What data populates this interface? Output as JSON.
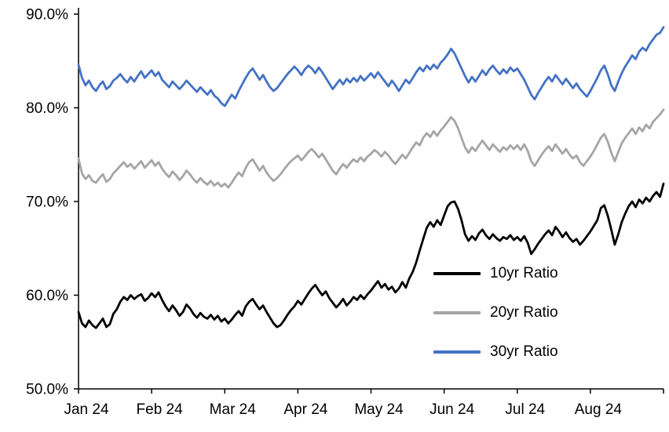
{
  "chart_data": {
    "type": "line",
    "title": "",
    "xlabel": "",
    "ylabel": "",
    "ylim": [
      50,
      90
    ],
    "grid": false,
    "legend_position": "inside-lower-right",
    "yticks": [
      50,
      60,
      70,
      80,
      90
    ],
    "ytick_labels": [
      "50.0%",
      "60.0%",
      "70.0%",
      "80.0%",
      "90.0%"
    ],
    "xtick_positions": [
      0,
      21,
      42,
      63,
      84,
      105,
      126,
      147
    ],
    "xtick_labels": [
      "Jan 24",
      "Feb 24",
      "Mar 24",
      "Apr 24",
      "May 24",
      "Jun 24",
      "Jul 24",
      "Aug 24"
    ],
    "axis_color": "#000000",
    "series": [
      {
        "name": "10yr Ratio",
        "color": "#000000",
        "values": [
          58.2,
          57.0,
          56.6,
          57.3,
          56.8,
          56.5,
          57.0,
          57.5,
          56.6,
          56.9,
          58.0,
          58.5,
          59.3,
          59.8,
          59.5,
          60.0,
          59.6,
          59.9,
          60.1,
          59.4,
          59.7,
          60.2,
          59.8,
          60.3,
          59.5,
          58.8,
          58.3,
          58.9,
          58.4,
          57.8,
          58.2,
          59.0,
          58.6,
          58.0,
          57.6,
          58.1,
          57.7,
          57.5,
          57.9,
          57.4,
          57.8,
          57.2,
          57.5,
          57.0,
          57.4,
          57.9,
          58.3,
          57.8,
          58.8,
          59.3,
          59.6,
          59.0,
          58.5,
          58.9,
          58.2,
          57.6,
          57.0,
          56.6,
          56.8,
          57.3,
          57.9,
          58.4,
          58.8,
          59.4,
          59.0,
          59.6,
          60.2,
          60.7,
          61.1,
          60.5,
          60.0,
          60.4,
          59.7,
          59.2,
          58.7,
          59.1,
          59.6,
          58.9,
          59.3,
          59.8,
          59.5,
          60.0,
          59.6,
          60.1,
          60.5,
          61.0,
          61.5,
          60.8,
          61.2,
          60.6,
          60.9,
          60.3,
          60.7,
          61.4,
          60.8,
          61.8,
          62.5,
          63.5,
          64.8,
          66.0,
          67.2,
          67.8,
          67.3,
          68.0,
          67.5,
          68.5,
          69.5,
          69.9,
          70.0,
          69.2,
          68.0,
          66.5,
          65.8,
          66.3,
          65.9,
          66.6,
          67.0,
          66.4,
          66.0,
          66.5,
          66.1,
          65.8,
          66.2,
          66.0,
          66.4,
          65.9,
          66.2,
          65.8,
          66.3,
          65.6,
          64.4,
          64.9,
          65.5,
          66.0,
          66.5,
          66.9,
          66.4,
          67.3,
          66.8,
          66.2,
          66.7,
          66.1,
          65.7,
          66.0,
          65.4,
          65.8,
          66.3,
          66.8,
          67.4,
          68.0,
          69.3,
          69.6,
          68.5,
          67.0,
          65.4,
          66.5,
          67.8,
          68.7,
          69.5,
          70.0,
          69.4,
          70.2,
          69.8,
          70.4,
          70.0,
          70.6,
          71.0,
          70.5,
          71.9
        ]
      },
      {
        "name": "20yr Ratio",
        "color": "#A5A5A5",
        "values": [
          74.6,
          73.0,
          72.4,
          72.8,
          72.2,
          72.0,
          72.5,
          72.9,
          72.1,
          72.4,
          73.0,
          73.4,
          73.8,
          74.2,
          73.7,
          74.0,
          73.5,
          73.9,
          74.3,
          73.6,
          74.0,
          74.4,
          73.8,
          74.2,
          73.5,
          73.0,
          72.6,
          73.2,
          72.8,
          72.3,
          72.7,
          73.3,
          72.9,
          72.4,
          72.0,
          72.5,
          72.1,
          71.8,
          72.2,
          71.7,
          72.0,
          71.6,
          71.9,
          71.5,
          72.0,
          72.6,
          73.1,
          72.7,
          73.6,
          74.2,
          74.5,
          73.9,
          73.3,
          73.8,
          73.1,
          72.6,
          72.2,
          72.5,
          72.9,
          73.4,
          73.9,
          74.3,
          74.6,
          74.9,
          74.4,
          74.8,
          75.3,
          75.6,
          75.2,
          74.7,
          75.1,
          74.5,
          73.9,
          73.3,
          72.9,
          73.5,
          74.0,
          73.6,
          74.1,
          74.5,
          74.2,
          74.7,
          74.3,
          74.8,
          75.1,
          75.5,
          75.2,
          74.8,
          75.3,
          74.9,
          74.4,
          74.0,
          74.5,
          75.0,
          74.6,
          75.2,
          75.8,
          76.3,
          76.0,
          76.8,
          77.3,
          76.9,
          77.5,
          77.0,
          77.6,
          78.0,
          78.5,
          79.0,
          78.6,
          77.8,
          76.8,
          75.8,
          75.2,
          75.8,
          75.4,
          76.0,
          76.5,
          76.0,
          75.5,
          76.1,
          75.7,
          75.3,
          75.8,
          75.5,
          76.0,
          75.6,
          76.0,
          75.5,
          76.1,
          75.4,
          74.3,
          73.8,
          74.4,
          75.0,
          75.5,
          75.9,
          75.4,
          76.1,
          75.6,
          75.1,
          75.6,
          75.0,
          74.6,
          74.9,
          74.2,
          73.8,
          74.3,
          74.8,
          75.4,
          76.1,
          76.8,
          77.2,
          76.4,
          75.2,
          74.3,
          75.3,
          76.2,
          76.8,
          77.3,
          77.8,
          77.2,
          77.9,
          77.5,
          78.2,
          77.8,
          78.5,
          78.9,
          79.3,
          79.8
        ]
      },
      {
        "name": "30yr Ratio",
        "color": "#4472C4",
        "values": [
          84.6,
          83.2,
          82.4,
          82.9,
          82.2,
          81.8,
          82.4,
          82.8,
          82.0,
          82.3,
          82.9,
          83.2,
          83.6,
          83.1,
          82.7,
          83.3,
          82.8,
          83.4,
          83.9,
          83.2,
          83.6,
          84.0,
          83.4,
          83.8,
          83.0,
          82.6,
          82.2,
          82.8,
          82.4,
          82.0,
          82.4,
          82.9,
          82.5,
          82.1,
          81.7,
          82.2,
          81.8,
          81.4,
          81.9,
          81.3,
          81.0,
          80.5,
          80.2,
          80.8,
          81.4,
          81.0,
          81.8,
          82.5,
          83.2,
          83.8,
          84.2,
          83.6,
          83.0,
          83.5,
          82.8,
          82.2,
          81.8,
          82.1,
          82.6,
          83.1,
          83.6,
          84.0,
          84.4,
          84.0,
          83.5,
          84.1,
          84.5,
          84.2,
          83.7,
          84.3,
          83.8,
          83.2,
          82.6,
          82.0,
          82.5,
          83.0,
          82.5,
          83.1,
          82.7,
          83.2,
          82.8,
          83.4,
          82.9,
          83.3,
          83.7,
          83.2,
          83.8,
          83.3,
          82.8,
          82.3,
          82.9,
          82.4,
          81.8,
          82.4,
          83.0,
          82.6,
          83.2,
          83.8,
          84.3,
          83.9,
          84.5,
          84.1,
          84.6,
          84.2,
          84.8,
          85.2,
          85.7,
          86.3,
          85.8,
          85.0,
          84.2,
          83.4,
          82.7,
          83.3,
          82.8,
          83.4,
          84.0,
          83.5,
          84.1,
          84.5,
          84.0,
          83.6,
          84.1,
          83.7,
          84.3,
          83.9,
          84.2,
          83.6,
          83.0,
          82.2,
          81.4,
          80.9,
          81.6,
          82.2,
          82.8,
          83.3,
          82.8,
          83.5,
          83.0,
          82.5,
          83.1,
          82.6,
          82.1,
          82.6,
          82.0,
          81.6,
          81.2,
          81.8,
          82.5,
          83.2,
          84.0,
          84.5,
          83.6,
          82.4,
          81.8,
          82.8,
          83.7,
          84.4,
          85.0,
          85.6,
          85.2,
          86.0,
          86.4,
          86.1,
          86.8,
          87.3,
          87.8,
          88.0,
          88.6
        ]
      }
    ]
  }
}
